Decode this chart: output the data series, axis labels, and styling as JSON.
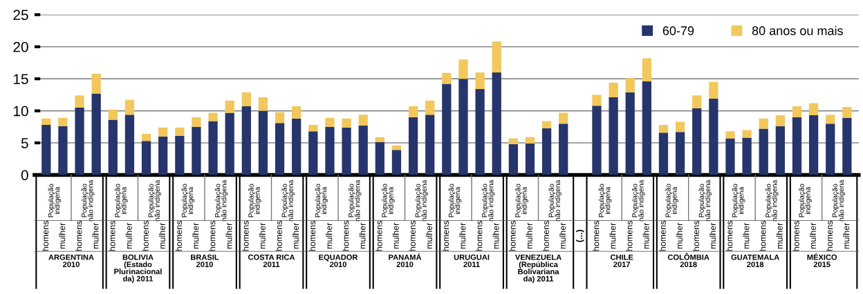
{
  "chart_data": {
    "type": "bar",
    "stacked": true,
    "categories": [
      "homens",
      "mulher",
      "homens",
      "mulher",
      "homens",
      "mulher",
      "homens",
      "mulher",
      "homens",
      "mulher",
      "homens",
      "mulher",
      "homens",
      "mulher",
      "homens",
      "mulher",
      "homens",
      "mulher",
      "homens",
      "mulher",
      "homens",
      "mulher",
      "homens",
      "mulher",
      "homens",
      "mulher",
      "homens",
      "mulher",
      "homens",
      "mulher",
      "homens",
      "mulher",
      "(...)",
      "homens",
      "mulher",
      "homens",
      "mulher",
      "homens",
      "mulher",
      "homens",
      "mulher",
      "homens",
      "mulher",
      "homens",
      "mulher",
      "homens",
      "mulher",
      "homens",
      "mulher"
    ],
    "series": [
      {
        "name": "60-79",
        "color": "#26356b",
        "values": [
          7.8,
          7.6,
          10.5,
          12.7,
          8.6,
          9.4,
          5.3,
          6.0,
          6.1,
          7.5,
          8.4,
          9.7,
          10.7,
          10.0,
          8.1,
          8.8,
          6.8,
          7.5,
          7.4,
          7.7,
          5.1,
          3.9,
          9.0,
          9.4,
          14.2,
          15.0,
          13.4,
          16.0,
          4.8,
          4.9,
          7.3,
          8.0,
          null,
          10.8,
          12.1,
          12.9,
          14.6,
          6.6,
          6.7,
          10.4,
          11.9,
          5.7,
          5.8,
          7.2,
          7.6,
          9.0,
          9.3,
          8.0,
          8.9
        ]
      },
      {
        "name": "80 anos ou mais",
        "color": "#f2c75b",
        "values": [
          1.0,
          1.3,
          1.9,
          3.1,
          1.6,
          2.3,
          1.1,
          1.4,
          1.3,
          1.5,
          1.3,
          1.9,
          2.2,
          2.1,
          1.7,
          1.9,
          1.0,
          1.4,
          1.4,
          1.7,
          0.8,
          0.7,
          1.7,
          2.2,
          1.7,
          3.0,
          2.6,
          4.8,
          0.9,
          1.0,
          1.1,
          1.7,
          null,
          1.7,
          2.3,
          2.2,
          3.6,
          1.2,
          1.6,
          2.0,
          2.6,
          1.1,
          1.2,
          1.6,
          1.7,
          1.7,
          1.9,
          1.4,
          1.7
        ]
      }
    ],
    "ylim": [
      0,
      25
    ],
    "yticks": [
      0,
      5,
      10,
      15,
      20,
      25
    ],
    "grid": "y",
    "legend": "top right",
    "annotations": [
      "População\nindígena",
      "População\nnão indígena",
      "População\nindígena",
      "População\nnão indígena",
      "População\nindígena",
      "População\nnão indígena",
      "População\nindígena",
      "População\nnão indígena",
      "População\nindígena",
      "População\nnão indígena",
      "População\nindígena",
      "População\nnão indígena",
      "População\nindígena",
      "População\nnão indígena",
      "População\nindígena",
      "População\nnão indígena",
      "População\nindígena",
      "População\nnão indígena",
      "População\nindígena",
      "População\nnão indígena",
      "População\nindígena",
      "População\nnão indígena",
      "População\nindígena",
      "População\nnão indígena",
      "ARGENTINA\n2010",
      "BOLIVIA\n(Estado\nPlurinacional\nda) 2011",
      "BRASIL\n2010",
      "COSTA RICA\n2011",
      "EQUADOR\n2010",
      "PANAMÁ\n2010",
      "URUGUAI\n2011",
      "VENEZUELA\n(República\nBolivariana\nda) 2011",
      "CHILE\n2017",
      "COLÔMBIA\n2018",
      "GUATEMALA\n2018",
      "MÉXICO\n2015"
    ]
  }
}
